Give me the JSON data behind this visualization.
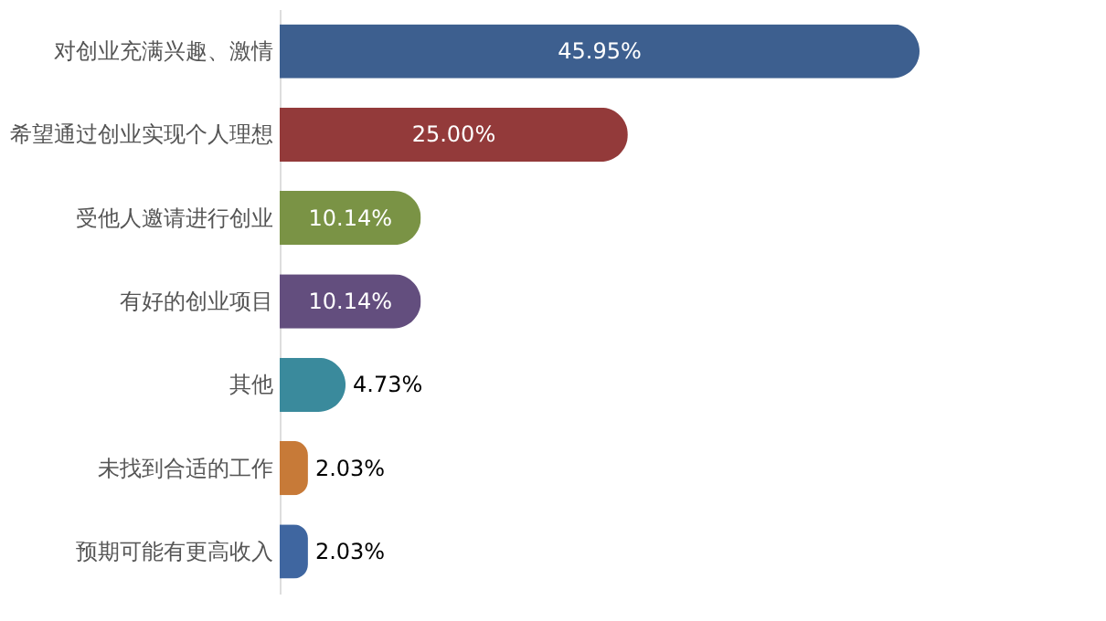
{
  "chart_data": {
    "type": "bar",
    "orientation": "horizontal",
    "grid": false,
    "categories": [
      "对创业充满兴趣、激情",
      "希望通过创业实现个人理想",
      "受他人邀请进行创业",
      "有好的创业项目",
      "其他",
      "未找到合适的工作",
      "预期可能有更高收入"
    ],
    "values": [
      45.95,
      25.0,
      10.14,
      10.14,
      4.73,
      2.03,
      2.03
    ],
    "value_labels": [
      "45.95%",
      "25.00%",
      "10.14%",
      "10.14%",
      "4.73%",
      "2.03%",
      "2.03%"
    ],
    "colors": [
      "#3d5f8f",
      "#933a3a",
      "#7a9345",
      "#634e7e",
      "#3a8a9c",
      "#c77a38",
      "#3f66a0"
    ]
  }
}
